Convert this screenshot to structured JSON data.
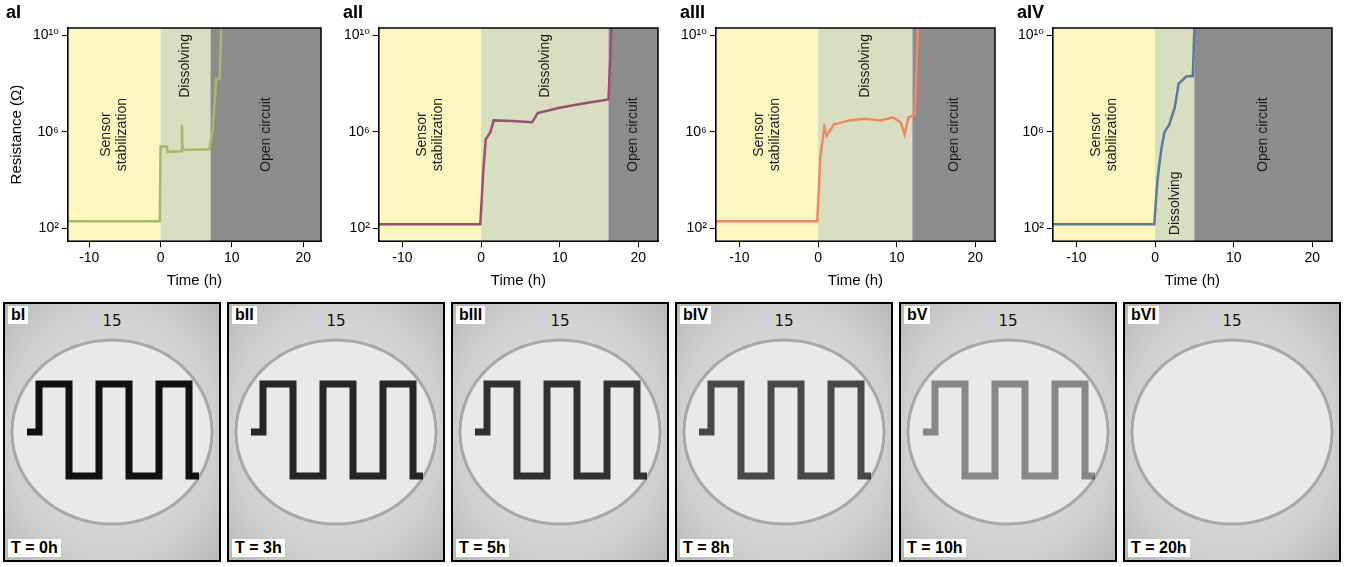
{
  "chart_data": [
    {
      "type": "line",
      "panel": "aI",
      "color": "#a8b86a",
      "x": [
        -13,
        -0.1,
        0,
        0.9,
        1,
        2.9,
        3,
        3.1,
        6.8,
        7.3,
        7.8,
        8.3,
        8.5
      ],
      "values": [
        200,
        200,
        250000,
        250000,
        150000,
        160000,
        2000000,
        180000,
        190000,
        1000000,
        150000000,
        150000000,
        20000000000
      ],
      "xlabel": "Time (h)",
      "ylabel": "Resistance (Ω)",
      "xlim": [
        -13,
        22.5
      ],
      "ylim": [
        30,
        20000000000
      ],
      "xticks": [
        -10,
        0,
        10,
        20
      ],
      "yticks": [
        {
          "value": 100,
          "label": "10²"
        },
        {
          "value": 1000000,
          "label": "10⁶"
        },
        {
          "value": 10000000000,
          "label": "10¹⁰"
        }
      ],
      "log": "y",
      "grid": false,
      "regions": [
        {
          "label": "Sensor stabilization",
          "start": -13,
          "end": 0,
          "color": "#fdf6bf"
        },
        {
          "label": "Dissolving",
          "start": 0,
          "end": 7,
          "color": "#d8dfc0"
        },
        {
          "label": "Open circuit",
          "start": 7,
          "end": 22.5,
          "color": "#8c8c8c"
        }
      ]
    },
    {
      "type": "line",
      "panel": "aII",
      "color": "#9b4f74",
      "x": [
        -13,
        -0.1,
        0.3,
        0.6,
        1.2,
        1.6,
        4,
        6.5,
        7.2,
        10,
        13,
        16.2,
        16.6
      ],
      "values": [
        150,
        150,
        30000,
        500000,
        1000000,
        3000000,
        2800000,
        2500000,
        6000000,
        10000000,
        15000000,
        22000000,
        20000000000
      ],
      "xlabel": "Time (h)",
      "xlim": [
        -13,
        22.5
      ],
      "ylim": [
        30,
        20000000000
      ],
      "xticks": [
        -10,
        0,
        10,
        20
      ],
      "yticks": [
        {
          "value": 100,
          "label": "10²"
        },
        {
          "value": 1000000,
          "label": "10⁶"
        },
        {
          "value": 10000000000,
          "label": "10¹⁰"
        }
      ],
      "log": "y",
      "grid": false,
      "regions": [
        {
          "label": "Sensor stabilization",
          "start": -13,
          "end": 0,
          "color": "#fdf6bf"
        },
        {
          "label": "Dissolving",
          "start": 0,
          "end": 16.2,
          "color": "#d8dfc0"
        },
        {
          "label": "Open circuit",
          "start": 16.2,
          "end": 22.5,
          "color": "#8c8c8c"
        }
      ]
    },
    {
      "type": "line",
      "panel": "aIII",
      "color": "#f08866",
      "x": [
        -13,
        -0.1,
        0.3,
        0.8,
        1.1,
        2,
        4,
        6,
        8,
        9.5,
        10.5,
        11,
        11.5,
        12.3,
        12.7
      ],
      "values": [
        200,
        200,
        100000,
        1500000,
        700000,
        2000000,
        3000000,
        3500000,
        3000000,
        4000000,
        2500000,
        800000,
        4000000,
        5000000,
        20000000000
      ],
      "xlabel": "Time (h)",
      "xlim": [
        -13,
        22.5
      ],
      "ylim": [
        30,
        20000000000
      ],
      "xticks": [
        -10,
        0,
        10,
        20
      ],
      "yticks": [
        {
          "value": 100,
          "label": "10²"
        },
        {
          "value": 1000000,
          "label": "10⁶"
        },
        {
          "value": 10000000000,
          "label": "10¹⁰"
        }
      ],
      "log": "y",
      "grid": false,
      "regions": [
        {
          "label": "Sensor stabilization",
          "start": -13,
          "end": 0,
          "color": "#fdf6bf"
        },
        {
          "label": "Dissolving",
          "start": 0,
          "end": 12,
          "color": "#d8dfc0"
        },
        {
          "label": "Open circuit",
          "start": 12,
          "end": 22.5,
          "color": "#8c8c8c"
        }
      ]
    },
    {
      "type": "line",
      "panel": "aIV",
      "color": "#5b7b9e",
      "x": [
        -13,
        -0.1,
        0.3,
        0.8,
        1.2,
        1.8,
        2.5,
        3,
        4,
        4.8,
        5
      ],
      "values": [
        150,
        150,
        10000,
        200000,
        1000000,
        2000000,
        10000000,
        100000000,
        200000000,
        200000000,
        20000000000
      ],
      "xlabel": "Time (h)",
      "xlim": [
        -13,
        22.5
      ],
      "ylim": [
        30,
        20000000000
      ],
      "xticks": [
        -10,
        0,
        10,
        20
      ],
      "yticks": [
        {
          "value": 100,
          "label": "10²"
        },
        {
          "value": 1000000,
          "label": "10⁶"
        },
        {
          "value": 10000000000,
          "label": "10¹⁰"
        }
      ],
      "log": "y",
      "grid": false,
      "regions": [
        {
          "label": "Sensor stabilization",
          "start": -13,
          "end": 0,
          "color": "#fdf6bf"
        },
        {
          "label": "Dissolving",
          "start": 0,
          "end": 5,
          "color": "#d8dfc0"
        },
        {
          "label": "Open circuit",
          "start": 5,
          "end": 22.5,
          "color": "#8c8c8c"
        }
      ]
    }
  ],
  "photos": [
    {
      "panel": "bI",
      "time_label": "T = 0h",
      "marking": "15"
    },
    {
      "panel": "bII",
      "time_label": "T = 3h",
      "marking": "15"
    },
    {
      "panel": "bIII",
      "time_label": "T = 5h",
      "marking": "15"
    },
    {
      "panel": "bIV",
      "time_label": "T = 8h",
      "marking": "15"
    },
    {
      "panel": "bV",
      "time_label": "T = 10h",
      "marking": "15"
    },
    {
      "panel": "bVI",
      "time_label": "T = 20h",
      "marking": "15"
    }
  ]
}
